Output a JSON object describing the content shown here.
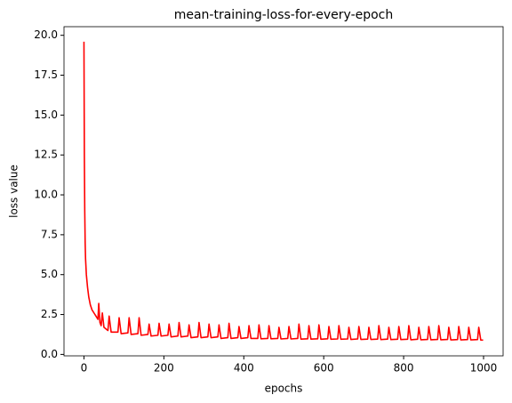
{
  "chart_data": {
    "type": "line",
    "title": "mean-training-loss-for-every-epoch",
    "x_label": "epochs",
    "y_label": "loss value",
    "xlim": [
      -49.95,
      1048.95
    ],
    "xticks": [
      0,
      200,
      400,
      600,
      800,
      1000
    ],
    "ylim": [
      -0.09,
      20.54
    ],
    "yticks": [
      {
        "value": 0,
        "label": "0.0"
      },
      2.5,
      {
        "value": 5,
        "label": "5.0"
      },
      7.5,
      {
        "value": 10,
        "label": "10.0"
      },
      12.5,
      {
        "value": 15,
        "label": "15.0"
      },
      17.5,
      {
        "value": 20,
        "label": "20.0"
      }
    ],
    "grid": false,
    "series": [
      {
        "name": "loss",
        "color": "#ff0000",
        "x": [
          0,
          1,
          2,
          3,
          4,
          6,
          9,
          12,
          16,
          20,
          25,
          30,
          35,
          37,
          40,
          43,
          46,
          50,
          55,
          60,
          63,
          68,
          85,
          88,
          93,
          110,
          113,
          118,
          135,
          138,
          143,
          160,
          163,
          168,
          185,
          188,
          193,
          210,
          213,
          218,
          235,
          238,
          243,
          260,
          263,
          268,
          285,
          288,
          293,
          310,
          313,
          318,
          335,
          338,
          343,
          360,
          363,
          368,
          385,
          388,
          393,
          410,
          413,
          418,
          435,
          438,
          443,
          460,
          463,
          468,
          485,
          488,
          493,
          510,
          513,
          518,
          535,
          538,
          543,
          560,
          563,
          568,
          585,
          588,
          593,
          610,
          613,
          618,
          635,
          638,
          643,
          660,
          663,
          668,
          685,
          688,
          693,
          710,
          713,
          718,
          735,
          738,
          743,
          760,
          763,
          768,
          785,
          788,
          793,
          810,
          813,
          818,
          835,
          838,
          843,
          860,
          863,
          868,
          885,
          888,
          893,
          910,
          913,
          918,
          935,
          938,
          943,
          960,
          963,
          968,
          985,
          988,
          993,
          999
        ],
        "values": [
          19.6,
          12.5,
          9,
          7,
          6,
          5,
          4.2,
          3.6,
          3.1,
          2.8,
          2.6,
          2.4,
          2.2,
          3.2,
          2.0,
          1.8,
          2.6,
          1.7,
          1.6,
          1.5,
          2.4,
          1.4,
          1.4,
          2.3,
          1.3,
          1.35,
          2.3,
          1.25,
          1.3,
          2.3,
          1.2,
          1.25,
          1.9,
          1.15,
          1.2,
          1.95,
          1.15,
          1.2,
          1.9,
          1.1,
          1.15,
          2.0,
          1.1,
          1.15,
          1.85,
          1.05,
          1.1,
          2.0,
          1.05,
          1.1,
          1.9,
          1.05,
          1.1,
          1.85,
          1.0,
          1.05,
          1.95,
          1.0,
          1.05,
          1.75,
          1.0,
          1.05,
          1.8,
          1.0,
          1.0,
          1.85,
          0.98,
          1.0,
          1.8,
          0.98,
          1.0,
          1.7,
          0.97,
          1.0,
          1.75,
          0.97,
          1.0,
          1.9,
          0.96,
          0.98,
          1.8,
          0.96,
          0.98,
          1.85,
          0.95,
          0.98,
          1.75,
          0.95,
          0.97,
          1.8,
          0.95,
          0.97,
          1.7,
          0.94,
          0.97,
          1.75,
          0.94,
          0.96,
          1.7,
          0.94,
          0.96,
          1.8,
          0.93,
          0.96,
          1.7,
          0.93,
          0.95,
          1.75,
          0.93,
          0.95,
          1.8,
          0.92,
          0.95,
          1.7,
          0.92,
          0.94,
          1.75,
          0.92,
          0.94,
          1.8,
          0.92,
          0.94,
          1.7,
          0.91,
          0.93,
          1.75,
          0.91,
          0.93,
          1.7,
          0.91,
          0.93,
          1.7,
          0.9,
          0.9
        ]
      }
    ]
  }
}
